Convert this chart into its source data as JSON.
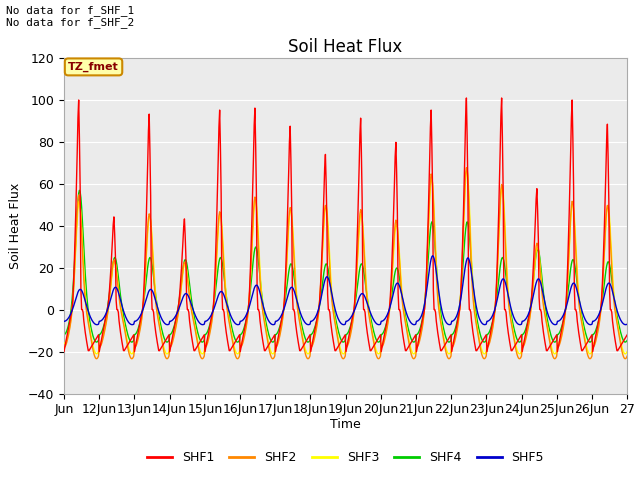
{
  "title": "Soil Heat Flux",
  "ylabel": "Soil Heat Flux",
  "xlabel": "Time",
  "ylim": [
    -40,
    120
  ],
  "yticks": [
    -40,
    -20,
    0,
    20,
    40,
    60,
    80,
    100,
    120
  ],
  "xtick_labels": [
    "Jun",
    "12Jun",
    "13Jun",
    "14Jun",
    "15Jun",
    "16Jun",
    "17Jun",
    "18Jun",
    "19Jun",
    "20Jun",
    "21Jun",
    "22Jun",
    "23Jun",
    "24Jun",
    "25Jun",
    "26Jun",
    "27"
  ],
  "series_colors": [
    "#ff0000",
    "#ff8800",
    "#ffff00",
    "#00cc00",
    "#0000cc"
  ],
  "series_names": [
    "SHF1",
    "SHF2",
    "SHF3",
    "SHF4",
    "SHF5"
  ],
  "annotation_text": "No data for f_SHF_1\nNo data for f_SHF_2",
  "tz_label": "TZ_fmet",
  "plot_bg_color": "#ebebeb",
  "title_fontsize": 12,
  "axis_fontsize": 9,
  "legend_fontsize": 9,
  "shf1_peaks": [
    104,
    46,
    97,
    45,
    99,
    100,
    91,
    77,
    95,
    83,
    99,
    105,
    105,
    60,
    104,
    92
  ],
  "shf2_peaks": [
    55,
    24,
    46,
    23,
    47,
    54,
    49,
    50,
    48,
    43,
    65,
    68,
    60,
    32,
    52,
    50
  ],
  "shf3_peaks": [
    52,
    23,
    45,
    22,
    46,
    53,
    48,
    50,
    46,
    41,
    63,
    67,
    59,
    30,
    51,
    50
  ],
  "shf4_peaks": [
    57,
    25,
    25,
    24,
    25,
    30,
    22,
    22,
    22,
    20,
    42,
    42,
    25,
    29,
    24,
    23
  ],
  "shf5_peaks": [
    10,
    11,
    10,
    8,
    9,
    12,
    11,
    16,
    8,
    13,
    26,
    25,
    15,
    15,
    13,
    13
  ]
}
